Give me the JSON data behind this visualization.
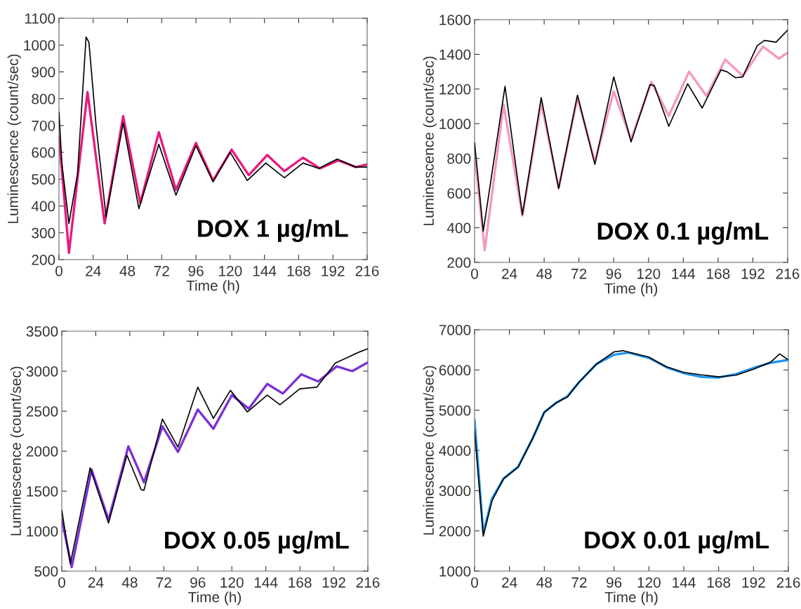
{
  "chart_data": [
    {
      "type": "line",
      "xlabel": "Time (h)",
      "ylabel": "Luminescence (count/sec)",
      "annotations": [
        "DOX 1 µg/mL"
      ],
      "xlim": [
        0,
        216
      ],
      "xticks": [
        0,
        24,
        48,
        72,
        96,
        120,
        144,
        168,
        192,
        216
      ],
      "ylim": [
        200,
        1100
      ],
      "yticks": [
        200,
        300,
        400,
        500,
        600,
        700,
        800,
        900,
        1000,
        1100
      ],
      "grid": false,
      "legend": false,
      "marker": "none",
      "line_style": "solid",
      "series": [
        {
          "color": "#000000",
          "x": [
            0,
            2,
            7,
            13,
            19,
            21,
            26,
            33,
            45,
            56,
            70,
            82,
            96,
            108,
            120,
            132,
            145,
            158,
            171,
            182,
            195,
            208,
            216
          ],
          "values": [
            750,
            560,
            335,
            520,
            1030,
            1010,
            700,
            360,
            710,
            390,
            630,
            440,
            625,
            490,
            600,
            495,
            560,
            505,
            560,
            540,
            575,
            545,
            545
          ]
        },
        {
          "color": "#e8197d",
          "x": [
            0,
            7,
            20,
            32,
            45,
            57,
            70,
            82,
            96,
            108,
            121,
            133,
            146,
            158,
            171,
            183,
            196,
            208,
            216
          ],
          "values": [
            660,
            225,
            825,
            335,
            735,
            410,
            675,
            460,
            635,
            495,
            610,
            515,
            590,
            530,
            580,
            540,
            570,
            545,
            555
          ]
        }
      ]
    },
    {
      "type": "line",
      "xlabel": "Time (h)",
      "ylabel": "Luminescence (count/sec)",
      "annotations": [
        "DOX 0.1 µg/mL"
      ],
      "xlim": [
        0,
        216
      ],
      "xticks": [
        0,
        24,
        48,
        72,
        96,
        120,
        144,
        168,
        192,
        216
      ],
      "ylim": [
        200,
        1600
      ],
      "yticks": [
        200,
        400,
        600,
        800,
        1000,
        1200,
        1400,
        1600
      ],
      "grid": false,
      "legend": false,
      "marker": "none",
      "line_style": "solid",
      "series": [
        {
          "color": "#000000",
          "x": [
            0,
            6,
            21,
            33,
            46,
            58,
            71,
            83,
            96,
            108,
            121,
            124,
            134,
            147,
            157,
            170,
            174,
            180,
            185,
            195,
            200,
            208,
            216
          ],
          "values": [
            890,
            380,
            1215,
            475,
            1150,
            625,
            1165,
            765,
            1270,
            895,
            1225,
            1220,
            985,
            1230,
            1090,
            1310,
            1300,
            1265,
            1270,
            1450,
            1480,
            1470,
            1540
          ]
        },
        {
          "color": "#f597c0",
          "x": [
            0,
            7,
            20,
            33,
            46,
            58,
            71,
            83,
            96,
            108,
            122,
            134,
            148,
            160,
            173,
            185,
            199,
            210,
            216
          ],
          "values": [
            830,
            270,
            1110,
            470,
            1120,
            630,
            1150,
            780,
            1185,
            910,
            1240,
            1045,
            1300,
            1160,
            1370,
            1275,
            1445,
            1375,
            1410
          ]
        }
      ]
    },
    {
      "type": "line",
      "xlabel": "Time (h)",
      "ylabel": "Luminescence (count/sec)",
      "annotations": [
        "DOX 0.05 µg/mL"
      ],
      "xlim": [
        0,
        216
      ],
      "xticks": [
        0,
        24,
        48,
        72,
        96,
        120,
        144,
        168,
        192,
        216
      ],
      "ylim": [
        500,
        3500
      ],
      "yticks": [
        500,
        1000,
        1500,
        2000,
        2500,
        3000,
        3500
      ],
      "grid": false,
      "legend": false,
      "marker": "none",
      "line_style": "solid",
      "series": [
        {
          "color": "#000000",
          "x": [
            0,
            6,
            20,
            33,
            46,
            56,
            58,
            71,
            82,
            96,
            107,
            119,
            131,
            145,
            154,
            168,
            180,
            193,
            210,
            216
          ],
          "values": [
            1260,
            590,
            1790,
            1100,
            1950,
            1520,
            1510,
            2400,
            2050,
            2800,
            2410,
            2760,
            2490,
            2700,
            2580,
            2780,
            2800,
            3100,
            3240,
            3280
          ]
        },
        {
          "color": "#7b2fd6",
          "x": [
            0,
            7,
            21,
            33,
            47,
            58,
            71,
            82,
            96,
            107,
            120,
            132,
            145,
            156,
            169,
            181,
            194,
            205,
            216
          ],
          "values": [
            1150,
            550,
            1770,
            1140,
            2060,
            1610,
            2310,
            1990,
            2520,
            2280,
            2700,
            2530,
            2840,
            2720,
            2960,
            2870,
            3060,
            3000,
            3110
          ]
        }
      ]
    },
    {
      "type": "line",
      "xlabel": "Time (h)",
      "ylabel": "Luminescence (count/sec)",
      "annotations": [
        "DOX 0.01 µg/mL"
      ],
      "xlim": [
        0,
        216
      ],
      "xticks": [
        0,
        24,
        48,
        72,
        96,
        120,
        144,
        168,
        192,
        216
      ],
      "ylim": [
        1000,
        7000
      ],
      "yticks": [
        1000,
        2000,
        3000,
        4000,
        5000,
        6000,
        7000
      ],
      "grid": false,
      "legend": false,
      "marker": "none",
      "line_style": "solid",
      "series": [
        {
          "color": "#2196f3",
          "x": [
            0,
            6,
            12,
            20,
            30,
            40,
            48,
            56,
            64,
            72,
            84,
            96,
            106,
            120,
            132,
            144,
            156,
            168,
            180,
            192,
            204,
            216
          ],
          "values": [
            4750,
            1950,
            2800,
            3300,
            3600,
            4300,
            4950,
            5180,
            5350,
            5700,
            6150,
            6380,
            6430,
            6300,
            6070,
            5920,
            5830,
            5810,
            5900,
            6050,
            6180,
            6250
          ]
        },
        {
          "color": "#000000",
          "x": [
            0,
            6,
            12,
            20,
            30,
            40,
            48,
            56,
            64,
            72,
            84,
            96,
            102,
            120,
            132,
            144,
            156,
            168,
            180,
            192,
            204,
            210,
            216
          ],
          "values": [
            4500,
            1870,
            2750,
            3300,
            3580,
            4300,
            4950,
            5180,
            5330,
            5700,
            6150,
            6450,
            6480,
            6320,
            6080,
            5940,
            5880,
            5830,
            5870,
            6020,
            6200,
            6400,
            6250
          ]
        }
      ]
    }
  ]
}
